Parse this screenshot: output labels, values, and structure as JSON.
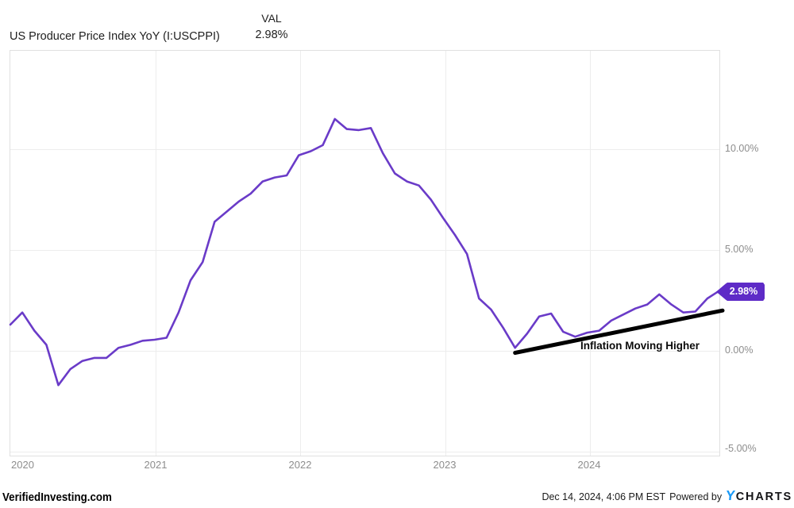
{
  "header": {
    "series_name": "US Producer Price Index YoY (I:USCPPI)",
    "value_column_label": "VAL",
    "value": "2.98%"
  },
  "chart_data": {
    "type": "line",
    "title": "US Producer Price Index YoY (I:USCPPI)",
    "legend_position": "none",
    "grid": true,
    "line_color": "#6a3bc8",
    "badge_color": "#5e2bc7",
    "trend_color": "#000000",
    "ylim": [
      -5.3,
      14.9
    ],
    "y_tick_labels": [
      "10.00%",
      "5.00%",
      "0.00%",
      "-5.00%"
    ],
    "y_tick_values": [
      10,
      5,
      0,
      -5
    ],
    "x_tick_labels": [
      "2020",
      "2021",
      "2022",
      "2023",
      "2024"
    ],
    "x": [
      "2019-12",
      "2020-01",
      "2020-02",
      "2020-03",
      "2020-04",
      "2020-05",
      "2020-06",
      "2020-07",
      "2020-08",
      "2020-09",
      "2020-10",
      "2020-11",
      "2020-12",
      "2021-01",
      "2021-02",
      "2021-03",
      "2021-04",
      "2021-05",
      "2021-06",
      "2021-07",
      "2021-08",
      "2021-09",
      "2021-10",
      "2021-11",
      "2021-12",
      "2022-01",
      "2022-02",
      "2022-03",
      "2022-04",
      "2022-05",
      "2022-06",
      "2022-07",
      "2022-08",
      "2022-09",
      "2022-10",
      "2022-11",
      "2022-12",
      "2023-01",
      "2023-02",
      "2023-03",
      "2023-04",
      "2023-05",
      "2023-06",
      "2023-07",
      "2023-08",
      "2023-09",
      "2023-10",
      "2023-11",
      "2023-12",
      "2024-01",
      "2024-02",
      "2024-03",
      "2024-04",
      "2024-05",
      "2024-06",
      "2024-07",
      "2024-08",
      "2024-09",
      "2024-10",
      "2024-11"
    ],
    "values": [
      1.3,
      1.9,
      1.0,
      0.3,
      -1.7,
      -0.9,
      -0.5,
      -0.35,
      -0.35,
      0.15,
      0.3,
      0.5,
      0.55,
      0.65,
      1.9,
      3.5,
      4.4,
      6.4,
      6.9,
      7.4,
      7.8,
      8.4,
      8.6,
      8.7,
      9.7,
      9.9,
      10.2,
      11.5,
      11.0,
      10.95,
      11.05,
      9.8,
      8.8,
      8.4,
      8.2,
      7.5,
      6.6,
      5.75,
      4.8,
      2.6,
      2.05,
      1.15,
      0.15,
      0.85,
      1.7,
      1.85,
      0.95,
      0.7,
      0.9,
      1.0,
      1.5,
      1.8,
      2.1,
      2.3,
      2.8,
      2.3,
      1.9,
      1.95,
      2.6,
      2.98
    ],
    "end_label": "2.98%",
    "annotation": {
      "text": "Inflation Moving Higher",
      "trend_line": {
        "from_month": "2023-06",
        "from_value": -0.1,
        "to_month": "2024-11",
        "to_value": 2.0
      }
    }
  },
  "footer": {
    "brand": "VerifiedInvesting.com",
    "timestamp": "Dec 14, 2024, 4:06 PM EST",
    "powered_by": "Powered by",
    "logo_y": "Y",
    "logo_charts": "CHARTS"
  }
}
